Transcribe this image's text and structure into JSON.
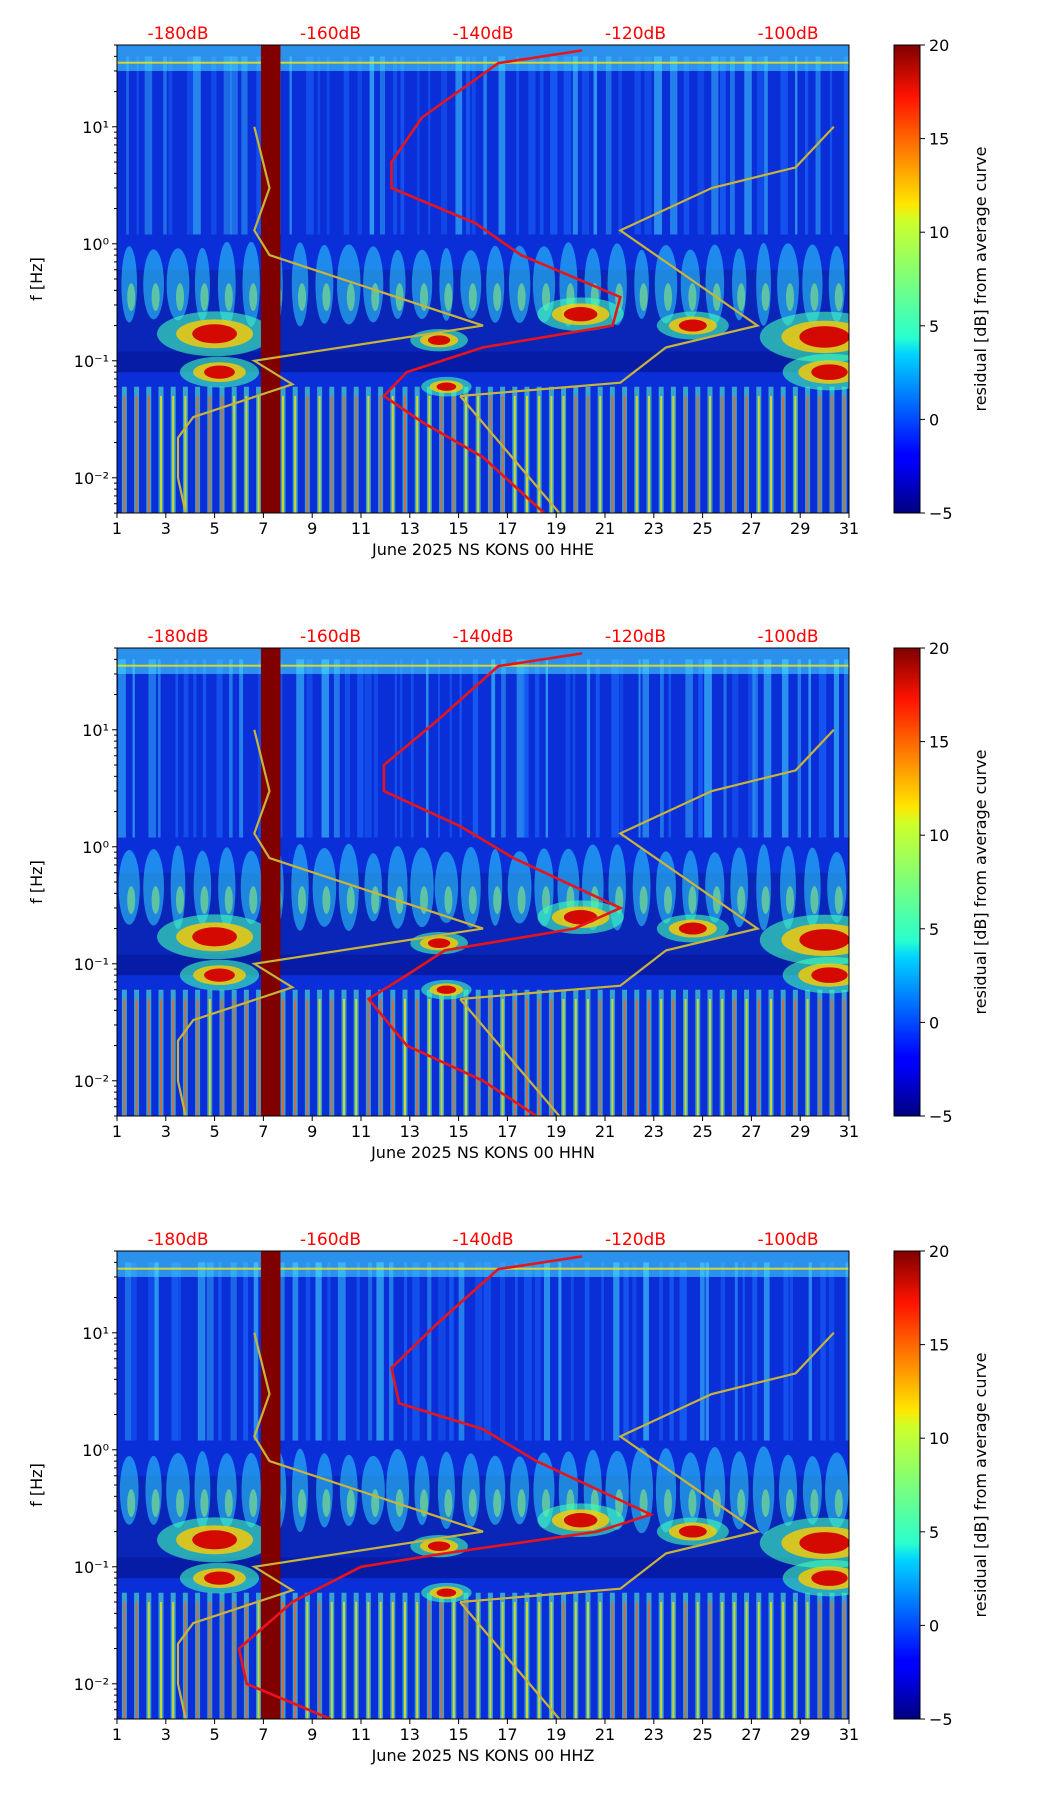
{
  "colors": {
    "background_low": "#00007f",
    "psd_curve": "#e8141b",
    "model_curve": "#c8b43a",
    "top_axis_text": "#ff0000",
    "gap_fill": "#800000"
  },
  "chart_data": [
    {
      "type": "heatmap",
      "channel": "HHE",
      "xlabel": "June 2025 NS KONS 00 HHE",
      "ylabel": "f [Hz]",
      "colorbar_label": "residual [dB] from average curve",
      "colorbar_ticks": [
        "−5",
        "0",
        "5",
        "10",
        "15",
        "20"
      ],
      "clim": [
        -5,
        20
      ],
      "x_range": [
        1,
        31
      ],
      "x_ticks": [
        "1",
        "3",
        "5",
        "7",
        "9",
        "11",
        "13",
        "15",
        "17",
        "19",
        "21",
        "23",
        "25",
        "27",
        "29",
        "31"
      ],
      "y_log_range": [
        0.005,
        50
      ],
      "y_ticks": [
        {
          "label": "10⁻²",
          "value": 0.01
        },
        {
          "label": "10⁻¹",
          "value": 0.1
        },
        {
          "label": "10⁰",
          "value": 1
        },
        {
          "label": "10¹",
          "value": 10
        }
      ],
      "top_axis_labels": [
        "-180dB",
        "-160dB",
        "-140dB",
        "-120dB",
        "-100dB"
      ],
      "top_axis_db": [
        -180,
        -160,
        -140,
        -120,
        -100
      ],
      "top_axis_db_range": [
        -188,
        -92
      ],
      "data_gap_days": [
        6.9,
        7.7
      ],
      "psd_curve_db": [
        [
          -127,
          45
        ],
        [
          -138,
          35
        ],
        [
          -148,
          12
        ],
        [
          -152,
          5
        ],
        [
          -152,
          3
        ],
        [
          -141,
          1.5
        ],
        [
          -135,
          0.8
        ],
        [
          -122,
          0.35
        ],
        [
          -123,
          0.2
        ],
        [
          -140,
          0.13
        ],
        [
          -150,
          0.08
        ],
        [
          -153,
          0.05
        ],
        [
          -148,
          0.03
        ],
        [
          -140,
          0.015
        ],
        [
          -132,
          0.005
        ]
      ],
      "model_curves_db": [
        [
          [
            -179,
            0.005
          ],
          [
            -180,
            0.01
          ],
          [
            -180,
            0.022
          ],
          [
            -178,
            0.033
          ],
          [
            -165,
            0.063
          ],
          [
            -170,
            0.1
          ],
          [
            -140,
            0.2
          ],
          [
            -168,
            0.8
          ],
          [
            -170,
            1.3
          ],
          [
            -168,
            3
          ],
          [
            -170,
            10
          ]
        ],
        [
          [
            -143,
            0.05
          ],
          [
            -130,
            0.005
          ]
        ],
        [
          [
            -143,
            0.05
          ],
          [
            -122,
            0.065
          ],
          [
            -116,
            0.13
          ],
          [
            -104,
            0.2
          ],
          [
            -122,
            1.3
          ],
          [
            -110,
            3
          ],
          [
            -99,
            4.5
          ],
          [
            -94,
            10
          ]
        ]
      ]
    },
    {
      "type": "heatmap",
      "channel": "HHN",
      "xlabel": "June 2025 NS KONS 00 HHN",
      "ylabel": "f [Hz]",
      "colorbar_label": "residual [dB] from average curve",
      "colorbar_ticks": [
        "−5",
        "0",
        "5",
        "10",
        "15",
        "20"
      ],
      "clim": [
        -5,
        20
      ],
      "x_range": [
        1,
        31
      ],
      "x_ticks": [
        "1",
        "3",
        "5",
        "7",
        "9",
        "11",
        "13",
        "15",
        "17",
        "19",
        "21",
        "23",
        "25",
        "27",
        "29",
        "31"
      ],
      "y_log_range": [
        0.005,
        50
      ],
      "y_ticks": [
        {
          "label": "10⁻²",
          "value": 0.01
        },
        {
          "label": "10⁻¹",
          "value": 0.1
        },
        {
          "label": "10⁰",
          "value": 1
        },
        {
          "label": "10¹",
          "value": 10
        }
      ],
      "top_axis_labels": [
        "-180dB",
        "-160dB",
        "-140dB",
        "-120dB",
        "-100dB"
      ],
      "top_axis_db": [
        -180,
        -160,
        -140,
        -120,
        -100
      ],
      "top_axis_db_range": [
        -188,
        -92
      ],
      "data_gap_days": [
        6.9,
        7.7
      ],
      "psd_curve_db": [
        [
          -127,
          45
        ],
        [
          -138,
          35
        ],
        [
          -146,
          12
        ],
        [
          -153,
          5
        ],
        [
          -153,
          3
        ],
        [
          -143,
          1.5
        ],
        [
          -136,
          0.8
        ],
        [
          -122,
          0.3
        ],
        [
          -128,
          0.2
        ],
        [
          -145,
          0.13
        ],
        [
          -150,
          0.08
        ],
        [
          -155,
          0.05
        ],
        [
          -150,
          0.02
        ],
        [
          -140,
          0.01
        ],
        [
          -133,
          0.005
        ]
      ],
      "model_curves_db": [
        [
          [
            -179,
            0.005
          ],
          [
            -180,
            0.01
          ],
          [
            -180,
            0.022
          ],
          [
            -178,
            0.033
          ],
          [
            -165,
            0.063
          ],
          [
            -170,
            0.1
          ],
          [
            -140,
            0.2
          ],
          [
            -168,
            0.8
          ],
          [
            -170,
            1.3
          ],
          [
            -168,
            3
          ],
          [
            -170,
            10
          ]
        ],
        [
          [
            -143,
            0.05
          ],
          [
            -130,
            0.005
          ]
        ],
        [
          [
            -143,
            0.05
          ],
          [
            -122,
            0.065
          ],
          [
            -116,
            0.13
          ],
          [
            -104,
            0.2
          ],
          [
            -122,
            1.3
          ],
          [
            -110,
            3
          ],
          [
            -99,
            4.5
          ],
          [
            -94,
            10
          ]
        ]
      ]
    },
    {
      "type": "heatmap",
      "channel": "HHZ",
      "xlabel": "June 2025 NS KONS 00 HHZ",
      "ylabel": "f [Hz]",
      "colorbar_label": "residual [dB] from average curve",
      "colorbar_ticks": [
        "−5",
        "0",
        "5",
        "10",
        "15",
        "20"
      ],
      "clim": [
        -5,
        20
      ],
      "x_range": [
        1,
        31
      ],
      "x_ticks": [
        "1",
        "3",
        "5",
        "7",
        "9",
        "11",
        "13",
        "15",
        "17",
        "19",
        "21",
        "23",
        "25",
        "27",
        "29",
        "31"
      ],
      "y_log_range": [
        0.005,
        50
      ],
      "y_ticks": [
        {
          "label": "10⁻²",
          "value": 0.01
        },
        {
          "label": "10⁻¹",
          "value": 0.1
        },
        {
          "label": "10⁰",
          "value": 1
        },
        {
          "label": "10¹",
          "value": 10
        }
      ],
      "top_axis_labels": [
        "-180dB",
        "-160dB",
        "-140dB",
        "-120dB",
        "-100dB"
      ],
      "top_axis_db": [
        -180,
        -160,
        -140,
        -120,
        -100
      ],
      "top_axis_db_range": [
        -188,
        -92
      ],
      "data_gap_days": [
        6.9,
        7.7
      ],
      "psd_curve_db": [
        [
          -127,
          45
        ],
        [
          -138,
          35
        ],
        [
          -146,
          12
        ],
        [
          -152,
          5
        ],
        [
          -151,
          2.5
        ],
        [
          -140,
          1.5
        ],
        [
          -133,
          0.8
        ],
        [
          -118,
          0.28
        ],
        [
          -125,
          0.2
        ],
        [
          -145,
          0.13
        ],
        [
          -156,
          0.1
        ],
        [
          -165,
          0.05
        ],
        [
          -172,
          0.02
        ],
        [
          -171,
          0.01
        ],
        [
          -160,
          0.005
        ]
      ],
      "model_curves_db": [
        [
          [
            -179,
            0.005
          ],
          [
            -180,
            0.01
          ],
          [
            -180,
            0.022
          ],
          [
            -178,
            0.033
          ],
          [
            -165,
            0.063
          ],
          [
            -170,
            0.1
          ],
          [
            -140,
            0.2
          ],
          [
            -168,
            0.8
          ],
          [
            -170,
            1.3
          ],
          [
            -168,
            3
          ],
          [
            -170,
            10
          ]
        ],
        [
          [
            -143,
            0.05
          ],
          [
            -130,
            0.005
          ]
        ],
        [
          [
            -143,
            0.05
          ],
          [
            -122,
            0.065
          ],
          [
            -116,
            0.13
          ],
          [
            -104,
            0.2
          ],
          [
            -122,
            1.3
          ],
          [
            -110,
            3
          ],
          [
            -99,
            4.5
          ],
          [
            -94,
            10
          ]
        ]
      ]
    }
  ]
}
